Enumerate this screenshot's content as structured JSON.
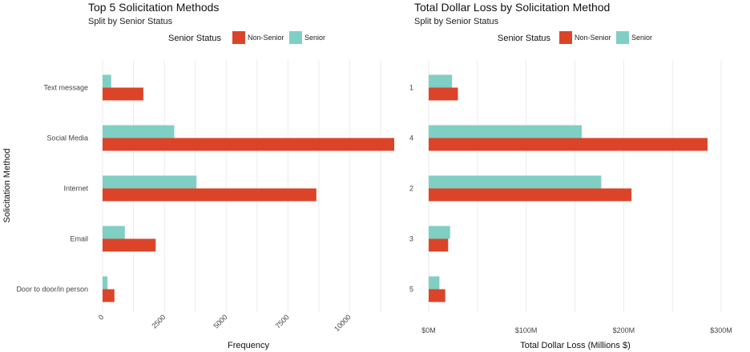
{
  "legend": {
    "title": "Senior Status",
    "items": [
      {
        "label": "Non-Senior",
        "color": "#dc4429"
      },
      {
        "label": "Senior",
        "color": "#7fcfc4"
      }
    ]
  },
  "chart_data": [
    {
      "type": "bar",
      "orientation": "horizontal",
      "title": "Top 5 Solicitation Methods",
      "subtitle": "Split by Senior Status",
      "xlabel": "Frequency",
      "ylabel": "Solicitation Method",
      "xlim": [
        0,
        11800
      ],
      "x_ticks": [
        0,
        2500,
        5000,
        7500,
        10000
      ],
      "x_tick_labels": [
        "0",
        "2500",
        "5000",
        "7500",
        "10000"
      ],
      "x_tick_rotated": true,
      "grid": true,
      "legend_position": "top",
      "categories": [
        "Text message",
        "Social Media",
        "Internet",
        "Email",
        "Door to door/in person"
      ],
      "category_labels_shown": true,
      "series": [
        {
          "name": "Senior",
          "color": "#7fcfc4",
          "values": [
            350,
            2900,
            3800,
            900,
            200
          ]
        },
        {
          "name": "Non-Senior",
          "color": "#dc4429",
          "values": [
            1650,
            11800,
            8650,
            2150,
            480
          ]
        }
      ]
    },
    {
      "type": "bar",
      "orientation": "horizontal",
      "title": "Total Dollar Loss by Solicitation Method",
      "subtitle": "Split by Senior Status",
      "xlabel": "Total Dollar Loss (Millions $)",
      "ylabel": "",
      "xlim": [
        0,
        300
      ],
      "x_ticks": [
        0,
        100,
        200,
        300
      ],
      "x_tick_labels": [
        "$0M",
        "$100M",
        "$200M",
        "$300M"
      ],
      "x_tick_rotated": false,
      "grid": true,
      "legend_position": "top",
      "categories": [
        "1",
        "4",
        "2",
        "3",
        "5"
      ],
      "category_labels_shown": true,
      "series": [
        {
          "name": "Senior",
          "color": "#7fcfc4",
          "values": [
            24,
            157,
            177,
            22,
            11
          ]
        },
        {
          "name": "Non-Senior",
          "color": "#dc4429",
          "values": [
            30,
            286,
            208,
            20,
            17
          ]
        }
      ]
    }
  ]
}
